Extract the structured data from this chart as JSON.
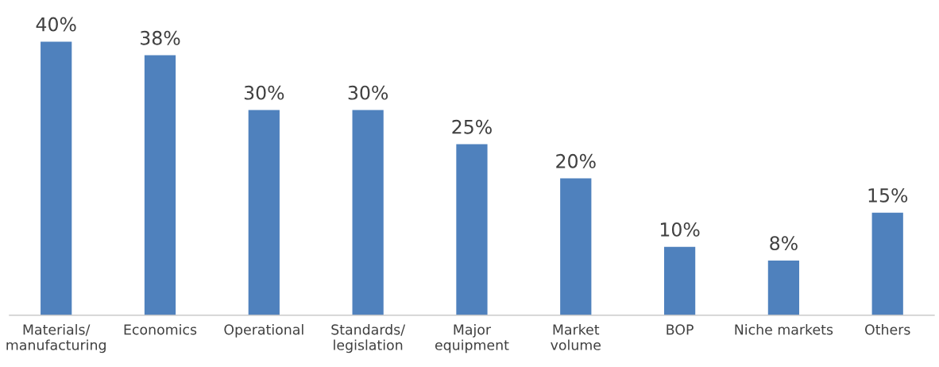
{
  "chart_data": {
    "type": "bar",
    "categories": [
      "Materials/\nmanufacturing",
      "Economics",
      "Operational",
      "Standards/\nlegislation",
      "Major\nequipment",
      "Market\nvolume",
      "BOP",
      "Niche markets",
      "Others"
    ],
    "values": [
      40,
      38,
      30,
      30,
      25,
      20,
      10,
      8,
      15
    ],
    "value_labels": [
      "40%",
      "38%",
      "30%",
      "30%",
      "25%",
      "20%",
      "10%",
      "8%",
      "15%"
    ],
    "color": "#4f81bd",
    "grid": false,
    "legend": false
  }
}
